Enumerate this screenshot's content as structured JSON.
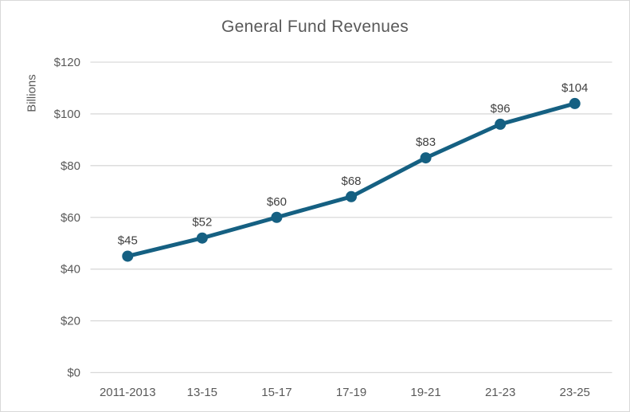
{
  "chart_data": {
    "type": "line",
    "title": "General Fund Revenues",
    "ylabel": "Billions",
    "xlabel": "",
    "categories": [
      "2011-2013",
      "13-15",
      "15-17",
      "17-19",
      "19-21",
      "21-23",
      "23-25"
    ],
    "values": [
      45,
      52,
      60,
      68,
      83,
      96,
      104
    ],
    "data_labels": [
      "$45",
      "$52",
      "$60",
      "$68",
      "$83",
      "$96",
      "$104"
    ],
    "ylim": [
      0,
      120
    ],
    "ytick_step": 20,
    "ytick_prefix": "$",
    "ytick_labels": [
      "$0",
      "$20",
      "$40",
      "$60",
      "$80",
      "$100",
      "$120"
    ],
    "grid": true,
    "legend": "none",
    "colors": {
      "line": "#156082",
      "marker": "#156082",
      "gridline": "#d9d9d9",
      "border": "#d9d9d9",
      "title_text": "#595959",
      "tick_text": "#595959",
      "data_label_text": "#404040",
      "background": "#ffffff"
    }
  }
}
